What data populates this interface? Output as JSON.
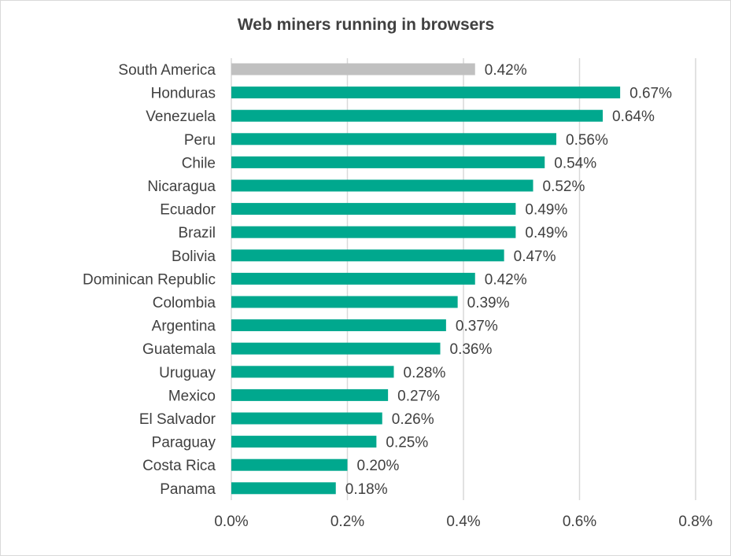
{
  "chart_data": {
    "type": "bar",
    "orientation": "horizontal",
    "title": "Web miners running in browsers",
    "xlabel": "",
    "ylabel": "",
    "categories": [
      "South America",
      "Honduras",
      "Venezuela",
      "Peru",
      "Chile",
      "Nicaragua",
      "Ecuador",
      "Brazil",
      "Bolivia",
      "Dominican Republic",
      "Colombia",
      "Argentina",
      "Guatemala",
      "Uruguay",
      "Mexico",
      "El Salvador",
      "Paraguay",
      "Costa Rica",
      "Panama"
    ],
    "values": [
      0.42,
      0.67,
      0.64,
      0.56,
      0.54,
      0.52,
      0.49,
      0.49,
      0.47,
      0.42,
      0.39,
      0.37,
      0.36,
      0.28,
      0.27,
      0.26,
      0.25,
      0.2,
      0.18
    ],
    "value_labels": [
      "0.42%",
      "0.67%",
      "0.64%",
      "0.56%",
      "0.54%",
      "0.52%",
      "0.49%",
      "0.49%",
      "0.47%",
      "0.42%",
      "0.39%",
      "0.37%",
      "0.36%",
      "0.28%",
      "0.27%",
      "0.26%",
      "0.25%",
      "0.20%",
      "0.18%"
    ],
    "highlight_index": 0,
    "xlim": [
      0,
      0.8
    ],
    "xticks": [
      0.0,
      0.2,
      0.4,
      0.6,
      0.8
    ],
    "xtick_labels": [
      "0.0%",
      "0.2%",
      "0.4%",
      "0.6%",
      "0.8%"
    ],
    "grid": "vertical",
    "legend": "none",
    "colors": {
      "bar": "#00a88e",
      "highlight_bar": "#c0c0c0",
      "text": "#404040",
      "grid": "#d9d9d9"
    }
  }
}
